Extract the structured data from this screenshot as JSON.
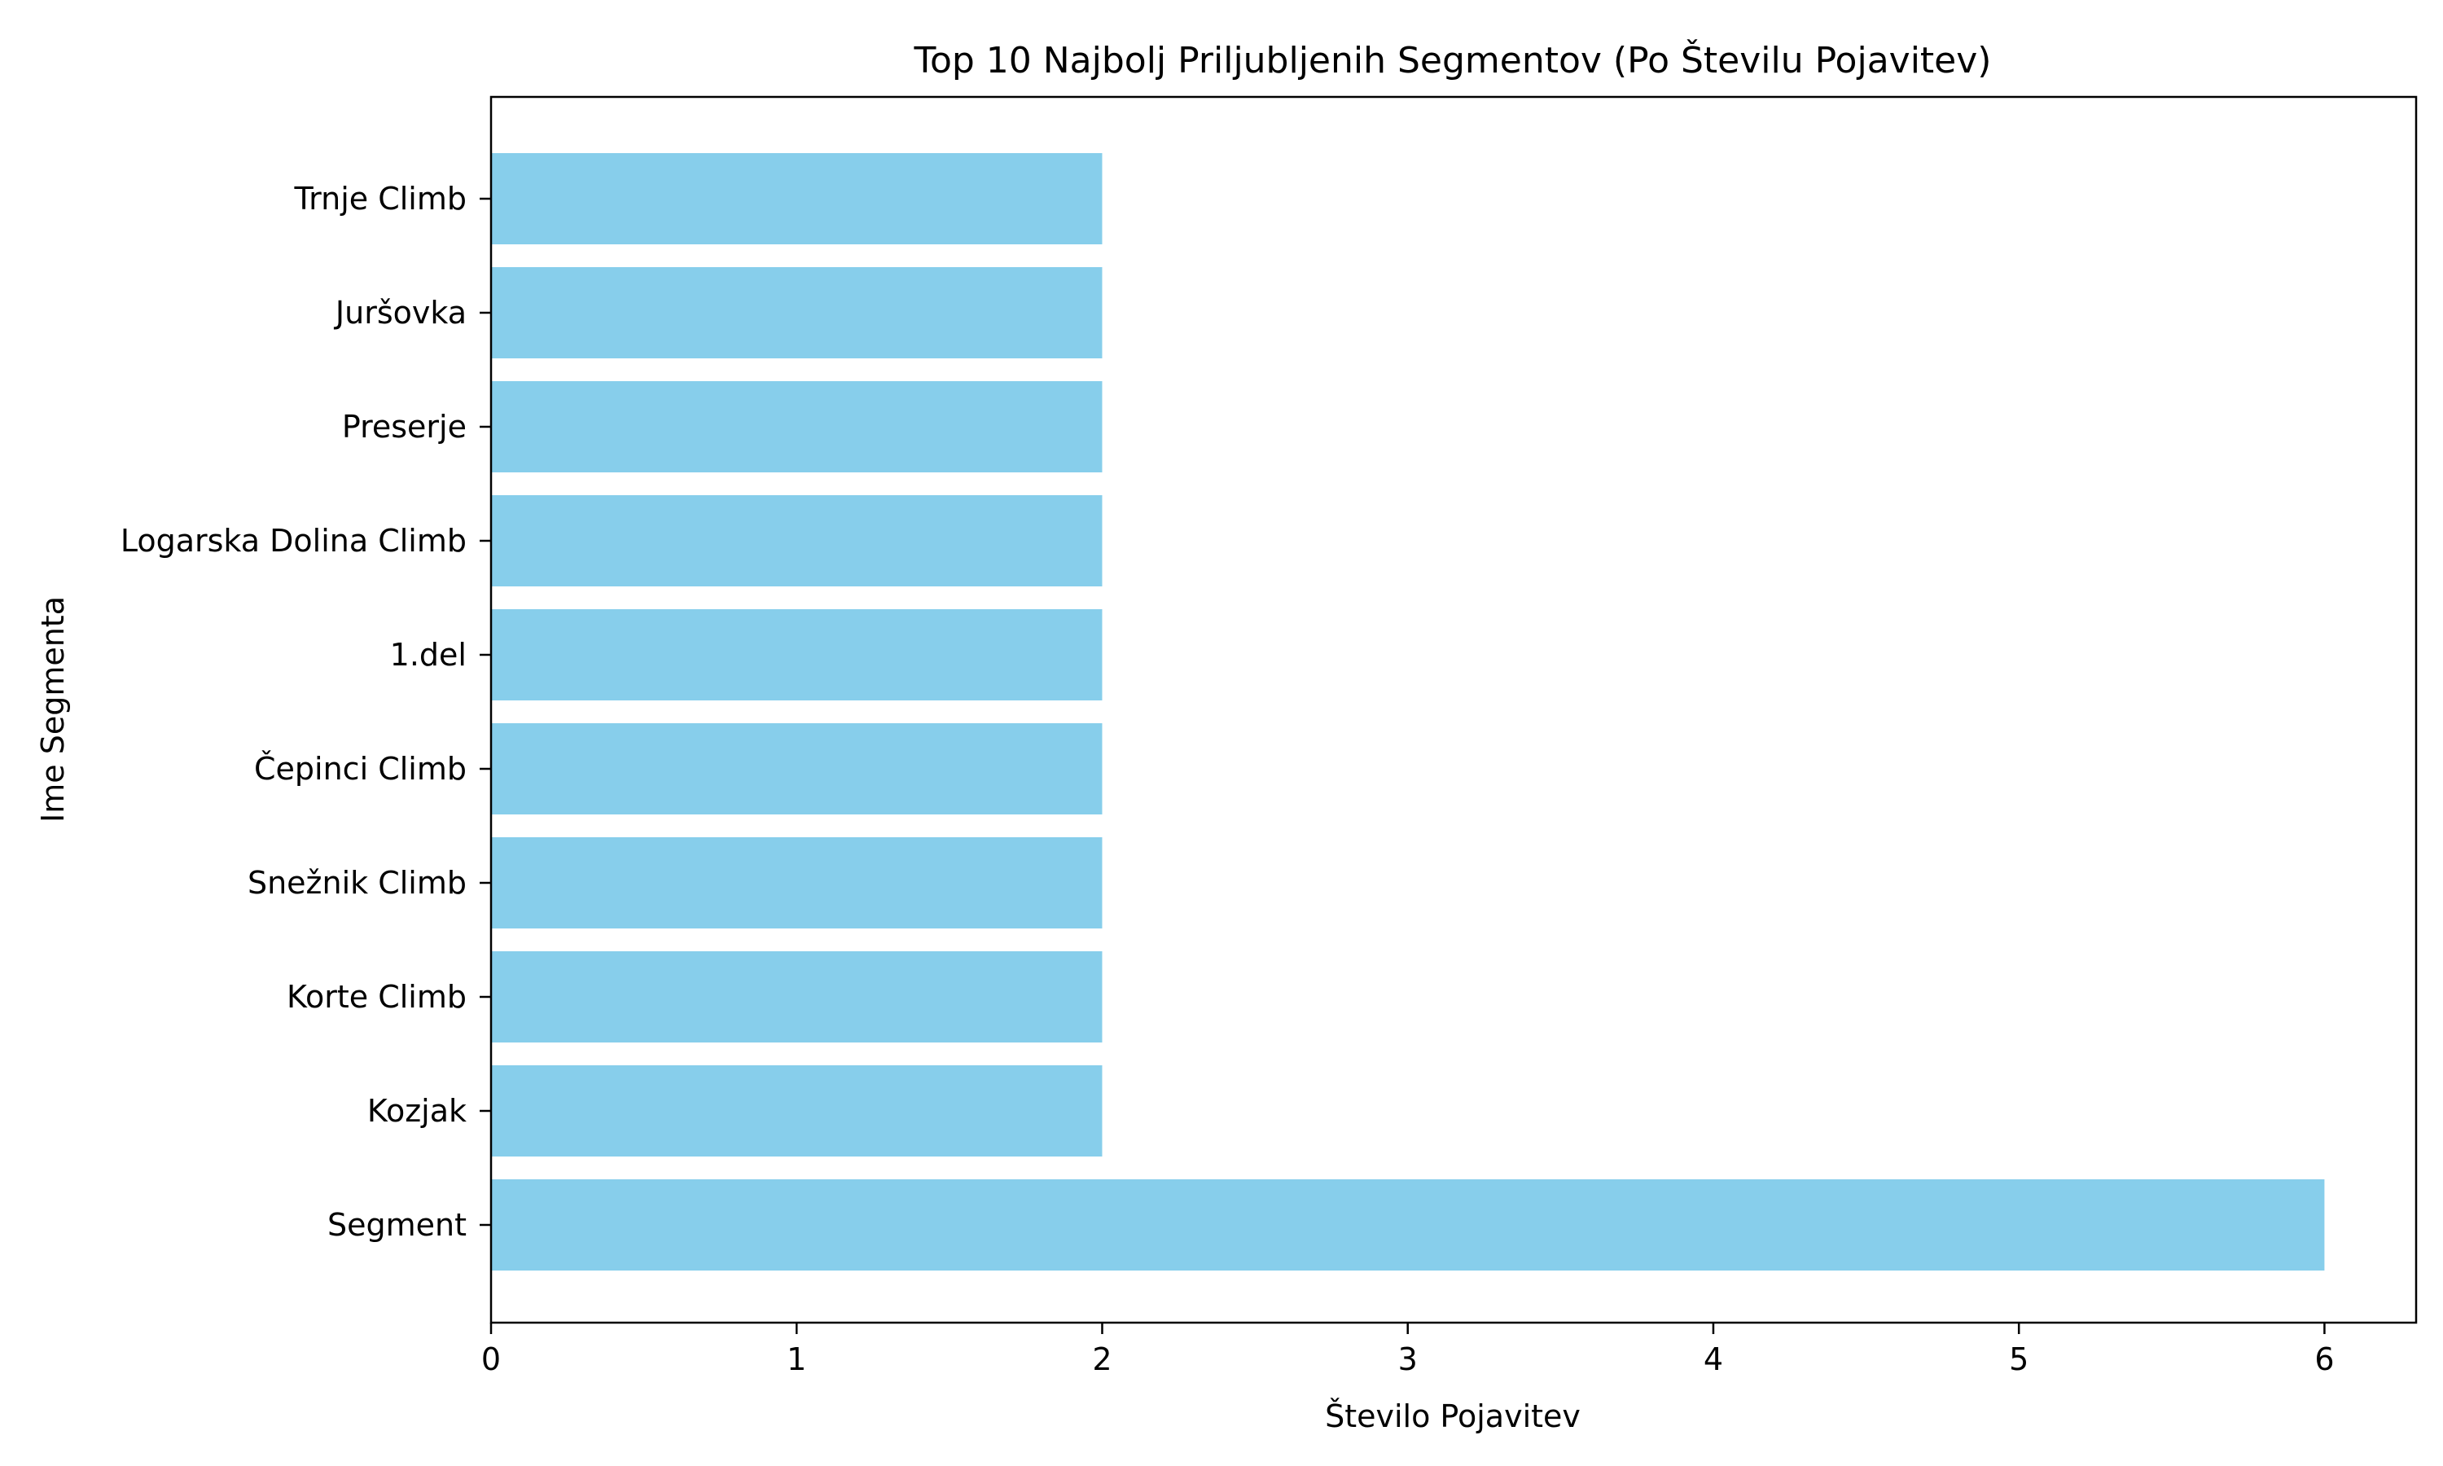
{
  "chart_data": {
    "type": "bar",
    "orientation": "horizontal",
    "title": "Top 10 Najbolj Priljubljenih Segmentov (Po Številu Pojavitev)",
    "xlabel": "Število Pojavitev",
    "ylabel": "Ime Segmenta",
    "categories": [
      "Segment",
      "Kozjak",
      "Korte Climb",
      "Snežnik Climb",
      "Čepinci Climb",
      "1.del",
      "Logarska Dolina Climb",
      "Preserje",
      "Juršovka",
      "Trnje Climb"
    ],
    "values": [
      6,
      2,
      2,
      2,
      2,
      2,
      2,
      2,
      2,
      2
    ],
    "xlim": [
      0,
      6.3
    ],
    "xticks": [
      "0",
      "1",
      "2",
      "3",
      "4",
      "5",
      "6"
    ],
    "bar_color": "#87CEEB",
    "grid": false,
    "legend": "none"
  }
}
